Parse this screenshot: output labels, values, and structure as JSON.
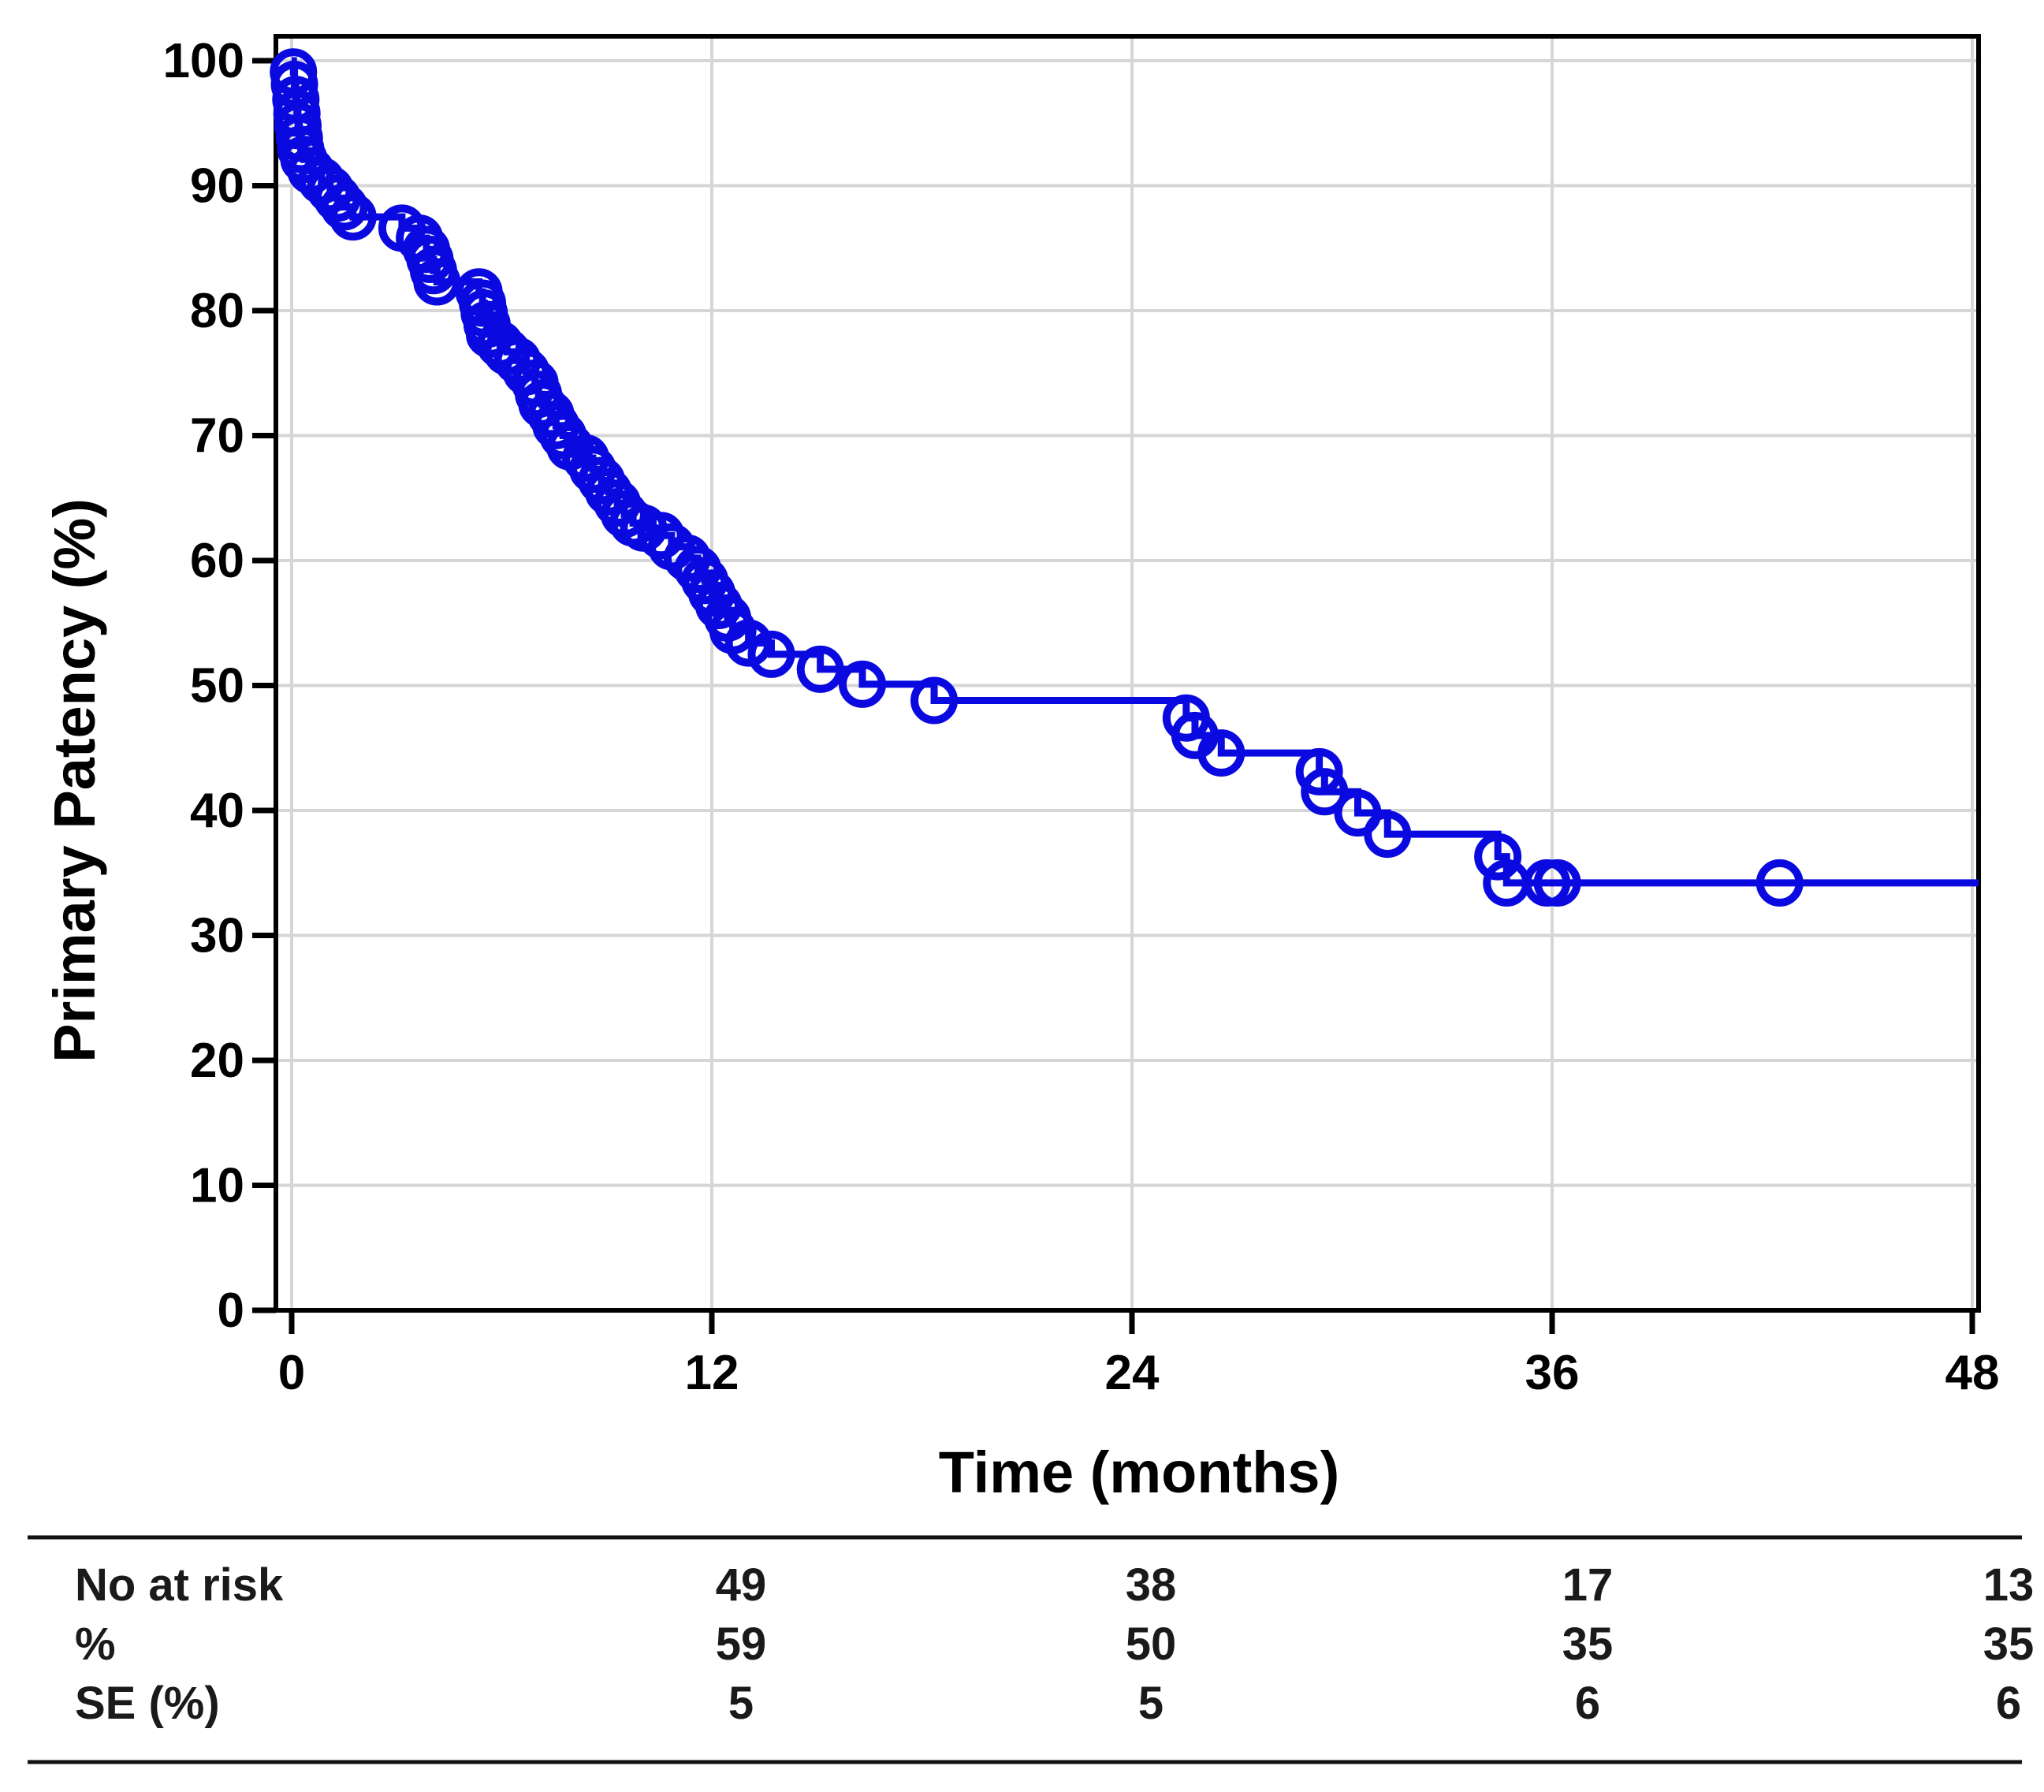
{
  "chart_data": {
    "type": "line",
    "subtype": "kaplan-meier-step",
    "title": "",
    "xlabel": "Time (months)",
    "ylabel": "Primary Patency (%)",
    "xlim": [
      0,
      48
    ],
    "ylim": [
      0,
      100
    ],
    "x_ticks": [
      0,
      12,
      24,
      36,
      48
    ],
    "y_ticks": [
      0,
      10,
      20,
      30,
      40,
      50,
      60,
      70,
      80,
      90,
      100
    ],
    "grid": true,
    "legend": "none",
    "line_color": "#0a0ae0",
    "marker": "open-circle",
    "series": [
      {
        "name": "Primary Patency",
        "points": [
          [
            0.05,
            99.1
          ],
          [
            0.08,
            98.1
          ],
          [
            0.12,
            96.9
          ],
          [
            0.15,
            95.8
          ],
          [
            0.18,
            94.8
          ],
          [
            0.22,
            93.8
          ],
          [
            0.26,
            92.9
          ],
          [
            0.35,
            92.1
          ],
          [
            0.55,
            91.2
          ],
          [
            0.85,
            90.4
          ],
          [
            1.1,
            89.7
          ],
          [
            1.3,
            89.0
          ],
          [
            1.5,
            88.3
          ],
          [
            1.75,
            87.5
          ],
          [
            3.15,
            86.6
          ],
          [
            3.65,
            85.8
          ],
          [
            3.85,
            84.9
          ],
          [
            3.95,
            84.1
          ],
          [
            4.05,
            83.2
          ],
          [
            4.15,
            82.3
          ],
          [
            5.35,
            81.5
          ],
          [
            5.45,
            80.6
          ],
          [
            5.5,
            79.8
          ],
          [
            5.58,
            78.9
          ],
          [
            5.65,
            78.1
          ],
          [
            5.95,
            77.3
          ],
          [
            6.15,
            76.7
          ],
          [
            6.45,
            76.0
          ],
          [
            6.7,
            75.1
          ],
          [
            6.95,
            74.2
          ],
          [
            7.05,
            73.3
          ],
          [
            7.15,
            72.5
          ],
          [
            7.4,
            71.7
          ],
          [
            7.55,
            70.8
          ],
          [
            7.75,
            70.0
          ],
          [
            7.95,
            69.1
          ],
          [
            8.4,
            68.2
          ],
          [
            8.6,
            67.3
          ],
          [
            8.85,
            66.4
          ],
          [
            9.05,
            65.5
          ],
          [
            9.3,
            64.6
          ],
          [
            9.5,
            63.7
          ],
          [
            9.75,
            63.0
          ],
          [
            10.05,
            62.6
          ],
          [
            10.55,
            62.0
          ],
          [
            10.85,
            61.1
          ],
          [
            11.3,
            60.2
          ],
          [
            11.6,
            59.3
          ],
          [
            11.8,
            58.4
          ],
          [
            12.0,
            57.4
          ],
          [
            12.2,
            56.4
          ],
          [
            12.45,
            55.4
          ],
          [
            12.6,
            54.4
          ],
          [
            13.05,
            53.4
          ],
          [
            13.7,
            52.5
          ],
          [
            15.1,
            51.3
          ],
          [
            16.3,
            50.1
          ],
          [
            18.35,
            48.8
          ],
          [
            25.55,
            47.4
          ],
          [
            25.8,
            46.0
          ],
          [
            26.55,
            44.6
          ],
          [
            29.35,
            43.1
          ],
          [
            29.5,
            41.5
          ],
          [
            30.45,
            39.8
          ],
          [
            31.3,
            38.1
          ],
          [
            34.45,
            36.3
          ],
          [
            34.7,
            34.2
          ],
          [
            35.85,
            34.2
          ],
          [
            36.15,
            34.2
          ],
          [
            42.5,
            34.2
          ]
        ]
      }
    ]
  },
  "risk_table": {
    "rows": [
      {
        "label": "No at risk",
        "values": [
          "49",
          "38",
          "17",
          "13"
        ]
      },
      {
        "label": "%",
        "values": [
          "59",
          "50",
          "35",
          "35"
        ]
      },
      {
        "label": "SE (%)",
        "values": [
          "5",
          "5",
          "6",
          "6"
        ]
      }
    ]
  }
}
